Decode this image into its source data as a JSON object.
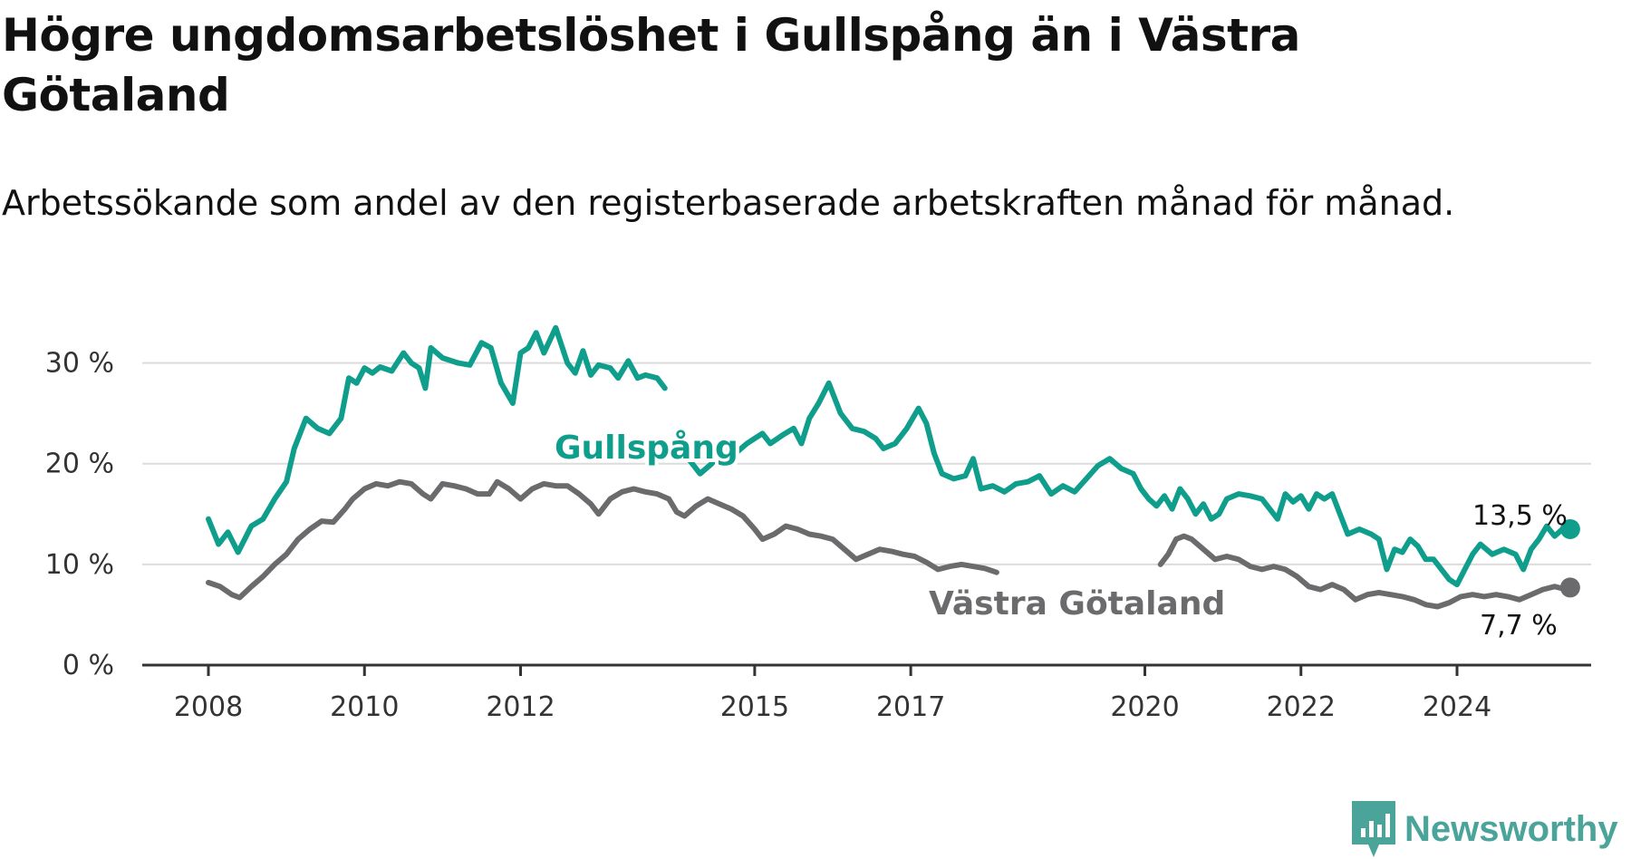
{
  "title": "Högre ungdomsarbetslöshet i Gullspång än i Västra Götaland",
  "subtitle": "Arbetssökande som andel av den registerbaserade arbetskraften månad för månad.",
  "brand": {
    "name": "Newsworthy",
    "color": "#4aa49a",
    "icon": "bar-chart-logo-icon"
  },
  "chart_data": {
    "type": "line",
    "ylim": [
      0,
      35
    ],
    "xlim": [
      2007.6,
      2026.4
    ],
    "y_ticks": [
      {
        "value": 0,
        "label": "0 %"
      },
      {
        "value": 10,
        "label": "10 %"
      },
      {
        "value": 20,
        "label": "20 %"
      },
      {
        "value": 30,
        "label": "30 %"
      }
    ],
    "x_ticks": [
      {
        "value": 2008,
        "label": "2008"
      },
      {
        "value": 2010,
        "label": "2010"
      },
      {
        "value": 2012,
        "label": "2012"
      },
      {
        "value": 2015,
        "label": "2015"
      },
      {
        "value": 2017,
        "label": "2017"
      },
      {
        "value": 2020,
        "label": "2020"
      },
      {
        "value": 2022,
        "label": "2022"
      },
      {
        "value": 2024,
        "label": "2024"
      }
    ],
    "grid": true,
    "series": [
      {
        "name": "Gullspång",
        "color": "#0f9d8c",
        "end_label": "13,5 %",
        "points": [
          [
            2008.0,
            14.5
          ],
          [
            2008.13,
            12.0
          ],
          [
            2008.25,
            13.2
          ],
          [
            2008.38,
            11.2
          ],
          [
            2008.55,
            13.8
          ],
          [
            2008.7,
            14.5
          ],
          [
            2008.85,
            16.5
          ],
          [
            2009.0,
            18.2
          ],
          [
            2009.1,
            21.5
          ],
          [
            2009.25,
            24.5
          ],
          [
            2009.4,
            23.5
          ],
          [
            2009.55,
            23.0
          ],
          [
            2009.7,
            24.5
          ],
          [
            2009.8,
            28.5
          ],
          [
            2009.9,
            28.0
          ],
          [
            2010.0,
            29.5
          ],
          [
            2010.1,
            29.0
          ],
          [
            2010.2,
            29.6
          ],
          [
            2010.35,
            29.2
          ],
          [
            2010.5,
            31.0
          ],
          [
            2010.6,
            30.0
          ],
          [
            2010.7,
            29.5
          ],
          [
            2010.78,
            27.5
          ],
          [
            2010.85,
            31.5
          ],
          [
            2011.0,
            30.5
          ],
          [
            2011.2,
            30.0
          ],
          [
            2011.35,
            29.8
          ],
          [
            2011.5,
            32.0
          ],
          [
            2011.62,
            31.5
          ],
          [
            2011.75,
            28.0
          ],
          [
            2011.9,
            26.0
          ],
          [
            2012.0,
            31.0
          ],
          [
            2012.1,
            31.5
          ],
          [
            2012.2,
            33.0
          ],
          [
            2012.3,
            31.0
          ],
          [
            2012.45,
            33.5
          ],
          [
            2012.6,
            30.0
          ],
          [
            2012.7,
            29.0
          ],
          [
            2012.8,
            31.2
          ],
          [
            2012.9,
            28.8
          ],
          [
            2013.0,
            29.8
          ],
          [
            2013.15,
            29.5
          ],
          [
            2013.25,
            28.5
          ],
          [
            2013.38,
            30.2
          ],
          [
            2013.5,
            28.5
          ],
          [
            2013.6,
            28.8
          ],
          [
            2013.75,
            28.5
          ],
          [
            2013.85,
            27.5
          ]
        ],
        "points_2": [
          [
            2014.0,
            21.0
          ],
          [
            2014.15,
            20.5
          ],
          [
            2014.3,
            19.0
          ],
          [
            2014.45,
            20.0
          ],
          [
            2014.6,
            21.5
          ],
          [
            2014.75,
            21.0
          ],
          [
            2014.9,
            22.0
          ],
          [
            2015.0,
            22.5
          ],
          [
            2015.1,
            23.0
          ],
          [
            2015.2,
            22.0
          ],
          [
            2015.35,
            22.8
          ],
          [
            2015.5,
            23.5
          ],
          [
            2015.6,
            22.0
          ],
          [
            2015.7,
            24.5
          ],
          [
            2015.82,
            26.0
          ],
          [
            2015.95,
            28.0
          ],
          [
            2016.1,
            25.0
          ],
          [
            2016.25,
            23.5
          ],
          [
            2016.4,
            23.2
          ],
          [
            2016.55,
            22.5
          ],
          [
            2016.65,
            21.5
          ],
          [
            2016.8,
            22.0
          ],
          [
            2016.95,
            23.5
          ],
          [
            2017.1,
            25.5
          ],
          [
            2017.2,
            24.0
          ],
          [
            2017.3,
            21.0
          ],
          [
            2017.4,
            19.0
          ],
          [
            2017.55,
            18.5
          ],
          [
            2017.7,
            18.8
          ],
          [
            2017.8,
            20.5
          ],
          [
            2017.9,
            17.5
          ],
          [
            2018.05,
            17.8
          ],
          [
            2018.2,
            17.2
          ],
          [
            2018.35,
            18.0
          ],
          [
            2018.5,
            18.2
          ],
          [
            2018.65,
            18.8
          ],
          [
            2018.8,
            17.0
          ],
          [
            2018.95,
            17.8
          ],
          [
            2019.1,
            17.2
          ],
          [
            2019.25,
            18.5
          ],
          [
            2019.4,
            19.8
          ],
          [
            2019.55,
            20.5
          ],
          [
            2019.7,
            19.5
          ],
          [
            2019.85,
            19.0
          ],
          [
            2019.95,
            17.5
          ],
          [
            2020.05,
            16.5
          ],
          [
            2020.15,
            15.8
          ],
          [
            2020.25,
            16.8
          ],
          [
            2020.35,
            15.5
          ],
          [
            2020.45,
            17.5
          ],
          [
            2020.55,
            16.5
          ],
          [
            2020.65,
            15.0
          ],
          [
            2020.75,
            16.0
          ],
          [
            2020.85,
            14.5
          ],
          [
            2020.95,
            15.0
          ],
          [
            2021.05,
            16.5
          ],
          [
            2021.2,
            17.0
          ],
          [
            2021.35,
            16.8
          ],
          [
            2021.5,
            16.5
          ],
          [
            2021.6,
            15.5
          ],
          [
            2021.7,
            14.5
          ],
          [
            2021.8,
            17.0
          ],
          [
            2021.9,
            16.2
          ],
          [
            2022.0,
            16.8
          ],
          [
            2022.1,
            15.5
          ],
          [
            2022.2,
            17.0
          ],
          [
            2022.3,
            16.5
          ],
          [
            2022.4,
            17.0
          ],
          [
            2022.5,
            15.0
          ],
          [
            2022.6,
            13.0
          ],
          [
            2022.75,
            13.5
          ],
          [
            2022.9,
            13.0
          ],
          [
            2023.0,
            12.5
          ],
          [
            2023.1,
            9.5
          ],
          [
            2023.2,
            11.5
          ],
          [
            2023.3,
            11.2
          ],
          [
            2023.4,
            12.5
          ],
          [
            2023.5,
            11.8
          ],
          [
            2023.6,
            10.5
          ],
          [
            2023.7,
            10.5
          ],
          [
            2023.8,
            9.5
          ],
          [
            2023.9,
            8.5
          ],
          [
            2024.0,
            8.0
          ],
          [
            2024.1,
            9.5
          ],
          [
            2024.2,
            11.0
          ],
          [
            2024.3,
            12.0
          ],
          [
            2024.45,
            11.0
          ],
          [
            2024.6,
            11.5
          ],
          [
            2024.75,
            11.0
          ],
          [
            2024.85,
            9.5
          ],
          [
            2024.95,
            11.5
          ],
          [
            2025.05,
            12.5
          ],
          [
            2025.15,
            13.8
          ],
          [
            2025.25,
            12.8
          ],
          [
            2025.35,
            13.5
          ],
          [
            2025.45,
            13.5
          ]
        ]
      },
      {
        "name": "Västra Götaland",
        "color": "#6b6b6e",
        "end_label": "7,7 %",
        "points": [
          [
            2008.0,
            8.2
          ],
          [
            2008.15,
            7.8
          ],
          [
            2008.3,
            7.0
          ],
          [
            2008.4,
            6.7
          ],
          [
            2008.55,
            7.8
          ],
          [
            2008.7,
            8.8
          ],
          [
            2008.85,
            10.0
          ],
          [
            2009.0,
            11.0
          ],
          [
            2009.15,
            12.5
          ],
          [
            2009.3,
            13.5
          ],
          [
            2009.45,
            14.3
          ],
          [
            2009.6,
            14.2
          ],
          [
            2009.75,
            15.5
          ],
          [
            2009.85,
            16.5
          ],
          [
            2010.0,
            17.5
          ],
          [
            2010.15,
            18.0
          ],
          [
            2010.3,
            17.8
          ],
          [
            2010.45,
            18.2
          ],
          [
            2010.6,
            18.0
          ],
          [
            2010.75,
            17.0
          ],
          [
            2010.85,
            16.5
          ],
          [
            2011.0,
            18.0
          ],
          [
            2011.15,
            17.8
          ],
          [
            2011.3,
            17.5
          ],
          [
            2011.45,
            17.0
          ],
          [
            2011.6,
            17.0
          ],
          [
            2011.7,
            18.2
          ],
          [
            2011.85,
            17.5
          ],
          [
            2012.0,
            16.5
          ],
          [
            2012.15,
            17.5
          ],
          [
            2012.3,
            18.0
          ],
          [
            2012.45,
            17.8
          ],
          [
            2012.6,
            17.8
          ],
          [
            2012.75,
            17.0
          ],
          [
            2012.9,
            16.0
          ],
          [
            2013.0,
            15.0
          ],
          [
            2013.15,
            16.5
          ],
          [
            2013.3,
            17.2
          ],
          [
            2013.45,
            17.5
          ],
          [
            2013.6,
            17.2
          ],
          [
            2013.75,
            17.0
          ],
          [
            2013.9,
            16.5
          ],
          [
            2014.0,
            15.2
          ],
          [
            2014.1,
            14.8
          ],
          [
            2014.25,
            15.8
          ],
          [
            2014.4,
            16.5
          ],
          [
            2014.55,
            16.0
          ],
          [
            2014.7,
            15.5
          ],
          [
            2014.85,
            14.8
          ],
          [
            2015.0,
            13.5
          ],
          [
            2015.1,
            12.5
          ],
          [
            2015.25,
            13.0
          ],
          [
            2015.4,
            13.8
          ],
          [
            2015.55,
            13.5
          ],
          [
            2015.7,
            13.0
          ],
          [
            2015.85,
            12.8
          ],
          [
            2016.0,
            12.5
          ],
          [
            2016.15,
            11.5
          ],
          [
            2016.3,
            10.5
          ],
          [
            2016.45,
            11.0
          ],
          [
            2016.6,
            11.5
          ],
          [
            2016.75,
            11.3
          ],
          [
            2016.9,
            11.0
          ],
          [
            2017.05,
            10.8
          ],
          [
            2017.2,
            10.2
          ],
          [
            2017.35,
            9.5
          ],
          [
            2017.5,
            9.8
          ],
          [
            2017.65,
            10.0
          ],
          [
            2017.8,
            9.8
          ],
          [
            2017.95,
            9.6
          ],
          [
            2018.1,
            9.2
          ]
        ],
        "points_2": [
          [
            2020.2,
            10.0
          ],
          [
            2020.3,
            11.0
          ],
          [
            2020.4,
            12.5
          ],
          [
            2020.5,
            12.8
          ],
          [
            2020.6,
            12.5
          ],
          [
            2020.75,
            11.5
          ],
          [
            2020.9,
            10.5
          ],
          [
            2021.05,
            10.8
          ],
          [
            2021.2,
            10.5
          ],
          [
            2021.35,
            9.8
          ],
          [
            2021.5,
            9.5
          ],
          [
            2021.65,
            9.8
          ],
          [
            2021.8,
            9.5
          ],
          [
            2021.95,
            8.8
          ],
          [
            2022.1,
            7.8
          ],
          [
            2022.25,
            7.5
          ],
          [
            2022.4,
            8.0
          ],
          [
            2022.55,
            7.5
          ],
          [
            2022.7,
            6.5
          ],
          [
            2022.85,
            7.0
          ],
          [
            2023.0,
            7.2
          ],
          [
            2023.15,
            7.0
          ],
          [
            2023.3,
            6.8
          ],
          [
            2023.45,
            6.5
          ],
          [
            2023.6,
            6.0
          ],
          [
            2023.75,
            5.8
          ],
          [
            2023.9,
            6.2
          ],
          [
            2024.05,
            6.8
          ],
          [
            2024.2,
            7.0
          ],
          [
            2024.35,
            6.8
          ],
          [
            2024.5,
            7.0
          ],
          [
            2024.65,
            6.8
          ],
          [
            2024.8,
            6.5
          ],
          [
            2024.95,
            7.0
          ],
          [
            2025.1,
            7.5
          ],
          [
            2025.25,
            7.8
          ],
          [
            2025.35,
            7.6
          ],
          [
            2025.45,
            7.7
          ]
        ]
      }
    ]
  }
}
